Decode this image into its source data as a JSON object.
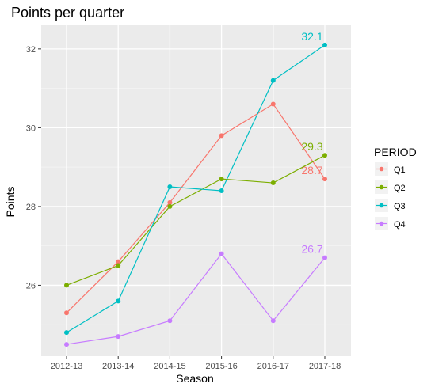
{
  "chart_data": {
    "type": "line",
    "title": "Points per quarter",
    "xlabel": "Season",
    "ylabel": "Points",
    "categories": [
      "2012-13",
      "2013-14",
      "2014-15",
      "2015-16",
      "2016-17",
      "2017-18"
    ],
    "y_ticks": [
      26,
      28,
      30,
      32
    ],
    "ylim": [
      24.2,
      32.6
    ],
    "grid": true,
    "legend": {
      "title": "PERIOD",
      "position": "right"
    },
    "series": [
      {
        "name": "Q1",
        "color": "#F8766D",
        "values": [
          25.3,
          26.6,
          28.1,
          29.8,
          30.6,
          28.7
        ],
        "end_label": "28.7"
      },
      {
        "name": "Q2",
        "color": "#7CAE00",
        "values": [
          26.0,
          26.5,
          28.0,
          28.7,
          28.6,
          29.3
        ],
        "end_label": "29.3"
      },
      {
        "name": "Q3",
        "color": "#00BFC4",
        "values": [
          24.8,
          25.6,
          28.5,
          28.4,
          31.2,
          32.1
        ],
        "end_label": "32.1"
      },
      {
        "name": "Q4",
        "color": "#C77CFF",
        "values": [
          24.5,
          24.7,
          25.1,
          26.8,
          25.1,
          26.7
        ],
        "end_label": "26.7"
      }
    ]
  }
}
